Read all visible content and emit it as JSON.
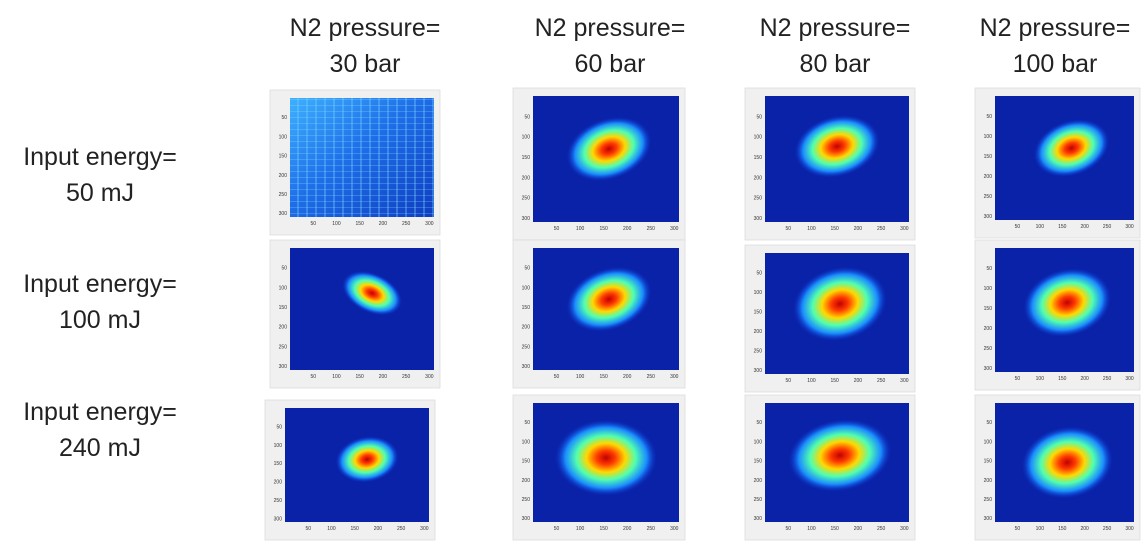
{
  "columns": [
    {
      "line1": "N2 pressure=",
      "line2": "30 bar"
    },
    {
      "line1": "N2 pressure=",
      "line2": "60 bar"
    },
    {
      "line1": "N2 pressure=",
      "line2": "80 bar"
    },
    {
      "line1": "N2 pressure=",
      "line2": "100 bar"
    }
  ],
  "rows": [
    {
      "line1": "Input energy=",
      "line2": "50 mJ"
    },
    {
      "line1": "Input energy=",
      "line2": "100 mJ"
    },
    {
      "line1": "Input energy=",
      "line2": "240 mJ"
    }
  ],
  "panel_axes": {
    "xticks": [
      50,
      100,
      150,
      200,
      250,
      300
    ],
    "yticks": [
      50,
      100,
      150,
      200,
      250,
      300
    ]
  }
}
